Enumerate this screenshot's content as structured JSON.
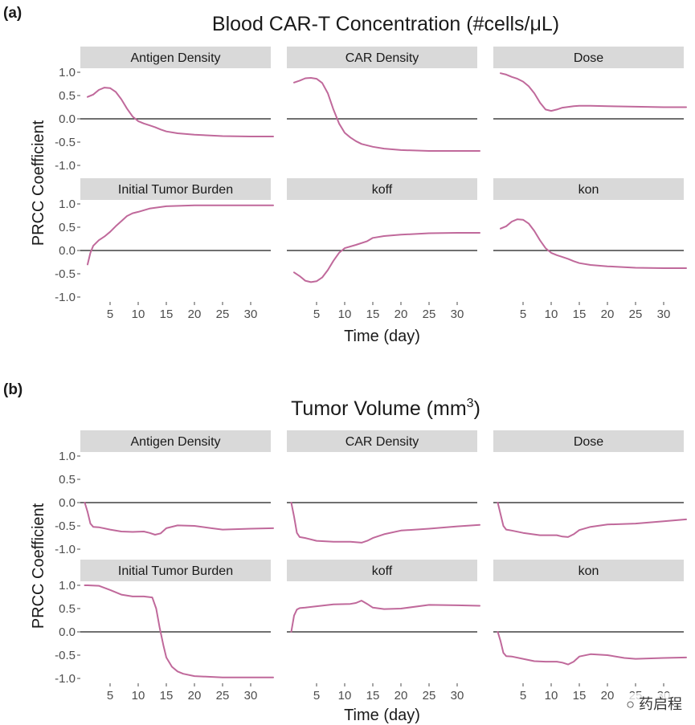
{
  "colors": {
    "curve": "#c0699b",
    "strip": "#d9d9d9"
  },
  "watermark": "药启程",
  "chart_data": [
    {
      "type": "line",
      "panel_label": "(a)",
      "title": "Blood CAR-T Concentration (#cells/μL)",
      "xlabel": "Time (day)",
      "ylabel": "PRCC Coefficient",
      "xlim": [
        0,
        35
      ],
      "ylim": [
        -1.1,
        1.1
      ],
      "xticks": [
        "5",
        "10",
        "15",
        "20",
        "25",
        "30"
      ],
      "yticks": [
        "1.0",
        "0.5",
        "0.0",
        "-0.5",
        "-1.0"
      ],
      "facets": [
        {
          "name": "Antigen Density",
          "x": [
            1,
            2,
            3,
            4,
            5,
            6,
            7,
            8,
            9,
            10,
            11,
            12,
            13,
            14,
            15,
            17,
            20,
            25,
            30,
            34
          ],
          "y": [
            0.47,
            0.52,
            0.62,
            0.67,
            0.66,
            0.58,
            0.42,
            0.22,
            0.05,
            -0.05,
            -0.1,
            -0.14,
            -0.18,
            -0.23,
            -0.27,
            -0.31,
            -0.34,
            -0.37,
            -0.38,
            -0.38
          ]
        },
        {
          "name": "CAR Density",
          "x": [
            1,
            2,
            3,
            4,
            5,
            6,
            7,
            8,
            9,
            10,
            11,
            12,
            13,
            15,
            17,
            20,
            25,
            30,
            34
          ],
          "y": [
            0.78,
            0.82,
            0.87,
            0.88,
            0.86,
            0.77,
            0.55,
            0.2,
            -0.1,
            -0.3,
            -0.4,
            -0.48,
            -0.54,
            -0.6,
            -0.64,
            -0.67,
            -0.69,
            -0.69,
            -0.69
          ]
        },
        {
          "name": "Dose",
          "x": [
            1,
            2,
            3,
            4,
            5,
            6,
            7,
            8,
            9,
            10,
            11,
            12,
            14,
            15,
            17,
            20,
            25,
            30,
            34
          ],
          "y": [
            0.98,
            0.95,
            0.9,
            0.86,
            0.8,
            0.7,
            0.55,
            0.35,
            0.2,
            0.17,
            0.2,
            0.24,
            0.27,
            0.28,
            0.28,
            0.27,
            0.26,
            0.25,
            0.25
          ]
        },
        {
          "name": "Initial Tumor Burden",
          "x": [
            1,
            1.5,
            2,
            3,
            4,
            5,
            6,
            7,
            8,
            9,
            10,
            12,
            15,
            20,
            25,
            30,
            34
          ],
          "y": [
            -0.3,
            -0.05,
            0.1,
            0.22,
            0.3,
            0.4,
            0.52,
            0.63,
            0.74,
            0.8,
            0.83,
            0.9,
            0.95,
            0.97,
            0.97,
            0.97,
            0.97
          ]
        },
        {
          "name": "koff",
          "x": [
            1,
            2,
            3,
            4,
            5,
            6,
            7,
            8,
            9,
            10,
            12,
            14,
            15,
            17,
            20,
            25,
            30,
            34
          ],
          "y": [
            -0.47,
            -0.55,
            -0.65,
            -0.68,
            -0.66,
            -0.58,
            -0.42,
            -0.22,
            -0.05,
            0.05,
            0.12,
            0.2,
            0.27,
            0.31,
            0.34,
            0.37,
            0.38,
            0.38
          ]
        },
        {
          "name": "kon",
          "x": [
            1,
            2,
            3,
            4,
            5,
            6,
            7,
            8,
            9,
            10,
            11,
            12,
            13,
            14,
            15,
            17,
            20,
            25,
            30,
            34
          ],
          "y": [
            0.47,
            0.52,
            0.62,
            0.67,
            0.66,
            0.58,
            0.42,
            0.22,
            0.05,
            -0.05,
            -0.1,
            -0.14,
            -0.18,
            -0.23,
            -0.27,
            -0.31,
            -0.34,
            -0.37,
            -0.38,
            -0.38
          ]
        }
      ]
    },
    {
      "type": "line",
      "panel_label": "(b)",
      "title": "Tumor Volume (mm",
      "title_sup": "3",
      "title_end": ")",
      "xlabel": "Time (day)",
      "ylabel": "PRCC Coefficient",
      "xlim": [
        0,
        35
      ],
      "ylim": [
        -1.1,
        1.1
      ],
      "xticks": [
        "5",
        "10",
        "15",
        "20",
        "25",
        "30"
      ],
      "yticks": [
        "1.0",
        "0.5",
        "0.0",
        "-0.5",
        "-1.0"
      ],
      "facets": [
        {
          "name": "Antigen Density",
          "x": [
            0.5,
            1,
            1.5,
            2,
            3,
            5,
            7,
            9,
            11,
            12,
            13,
            14,
            15,
            17,
            20,
            23,
            25,
            30,
            34
          ],
          "y": [
            0,
            -0.2,
            -0.45,
            -0.52,
            -0.53,
            -0.58,
            -0.62,
            -0.63,
            -0.62,
            -0.65,
            -0.69,
            -0.66,
            -0.55,
            -0.49,
            -0.5,
            -0.55,
            -0.58,
            -0.56,
            -0.55
          ]
        },
        {
          "name": "CAR Density",
          "x": [
            0.5,
            1,
            1.5,
            2,
            3,
            5,
            8,
            11,
            13,
            14,
            15,
            17,
            20,
            25,
            30,
            34
          ],
          "y": [
            0,
            -0.3,
            -0.65,
            -0.74,
            -0.76,
            -0.82,
            -0.84,
            -0.84,
            -0.86,
            -0.82,
            -0.76,
            -0.68,
            -0.6,
            -0.56,
            -0.51,
            -0.48
          ]
        },
        {
          "name": "Dose",
          "x": [
            0.5,
            1,
            1.5,
            2,
            3,
            5,
            8,
            11,
            12,
            13,
            14,
            15,
            17,
            20,
            25,
            30,
            34
          ],
          "y": [
            0,
            -0.25,
            -0.5,
            -0.58,
            -0.6,
            -0.65,
            -0.7,
            -0.7,
            -0.73,
            -0.74,
            -0.68,
            -0.59,
            -0.52,
            -0.47,
            -0.45,
            -0.4,
            -0.36
          ]
        },
        {
          "name": "Initial Tumor Burden",
          "x": [
            0.5,
            1,
            3,
            5,
            7,
            9,
            11,
            12.5,
            13.2,
            13.8,
            14.5,
            15,
            16,
            17,
            18,
            20,
            25,
            30,
            34
          ],
          "y": [
            1.0,
            1.0,
            0.99,
            0.9,
            0.8,
            0.76,
            0.76,
            0.74,
            0.5,
            0.1,
            -0.3,
            -0.55,
            -0.75,
            -0.85,
            -0.9,
            -0.95,
            -0.98,
            -0.98,
            -0.98
          ]
        },
        {
          "name": "koff",
          "x": [
            0.5,
            1,
            1.5,
            2,
            3,
            5,
            8,
            11,
            12,
            13,
            14,
            15,
            17,
            20,
            25,
            30,
            34
          ],
          "y": [
            0,
            0.35,
            0.48,
            0.51,
            0.52,
            0.55,
            0.59,
            0.6,
            0.62,
            0.67,
            0.6,
            0.52,
            0.49,
            0.5,
            0.58,
            0.57,
            0.56
          ]
        },
        {
          "name": "kon",
          "x": [
            0.5,
            1,
            1.5,
            2,
            3,
            5,
            7,
            9,
            11,
            12,
            13,
            14,
            15,
            17,
            20,
            23,
            25,
            30,
            34
          ],
          "y": [
            0,
            -0.2,
            -0.45,
            -0.52,
            -0.53,
            -0.58,
            -0.63,
            -0.64,
            -0.64,
            -0.66,
            -0.7,
            -0.64,
            -0.53,
            -0.48,
            -0.5,
            -0.56,
            -0.58,
            -0.56,
            -0.55
          ]
        }
      ]
    }
  ]
}
